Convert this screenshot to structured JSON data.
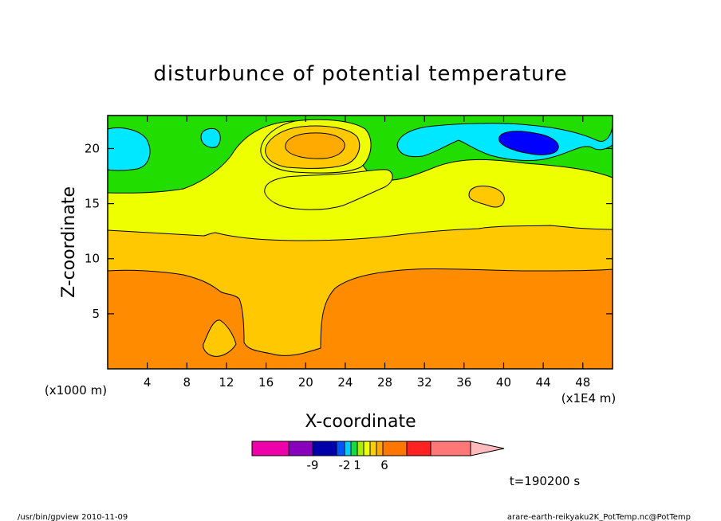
{
  "chart_data": {
    "type": "heatmap",
    "subtype": "filled-contour",
    "title": "disturbunce of potential temperature",
    "xlabel": "X-coordinate",
    "ylabel": "Z-coordinate",
    "x_unit_left": "(x1000 m)",
    "x_unit_right": "(x1E4 m)",
    "xlim": [
      0,
      51
    ],
    "ylim": [
      0,
      23
    ],
    "x_ticks": [
      4,
      8,
      12,
      16,
      20,
      24,
      28,
      32,
      36,
      40,
      44,
      48
    ],
    "y_ticks": [
      5,
      10,
      15,
      20
    ],
    "grid": false,
    "levels": [
      {
        "id": "l7",
        "color": "#ff8c00",
        "description": "lowest band"
      },
      {
        "id": "l6",
        "color": "#ffc800",
        "description": "lower-middle band"
      },
      {
        "id": "l5",
        "color": "#eeff00",
        "description": "middle band"
      },
      {
        "id": "l4",
        "color": "#22dd00",
        "description": "upper band"
      },
      {
        "id": "l3",
        "color": "#00e8ff",
        "description": "cool pockets"
      },
      {
        "id": "l2",
        "color": "#0000ff",
        "description": "coldest pocket"
      }
    ],
    "colorbar": {
      "colors": [
        "#ee00aa",
        "#8800bb",
        "#0000aa",
        "#0055ff",
        "#00ccff",
        "#11dd44",
        "#aaee00",
        "#eeff00",
        "#ffd000",
        "#ffaa00",
        "#ff7700",
        "#ff2222",
        "#ff7777"
      ],
      "extend_color": "#ffbbbb",
      "tick_labels": [
        "-9",
        "-2",
        "1",
        "6"
      ]
    },
    "time_label": "t=190200 s"
  },
  "footer": {
    "left": "/usr/bin/gpview  2010-11-09",
    "right": "arare-earth-reikyaku2K_PotTemp.nc@PotTemp"
  }
}
